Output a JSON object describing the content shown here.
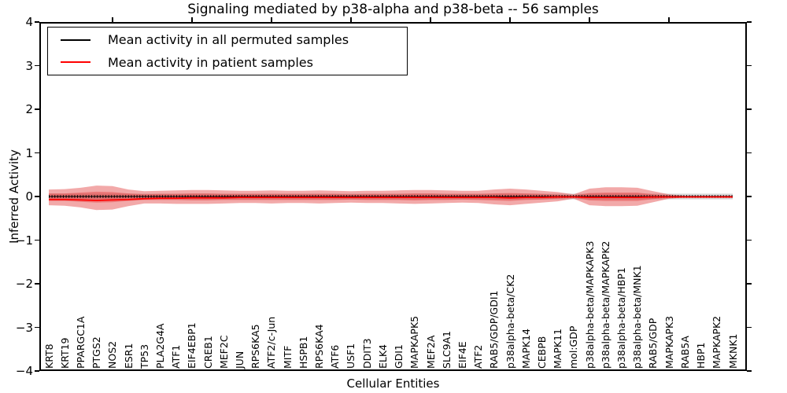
{
  "title": "Signaling mediated by p38-alpha and p38-beta -- 56 samples",
  "axes": {
    "ylabel": "Inferred Activity",
    "xlabel": "Cellular Entities",
    "ylim": [
      -4,
      4
    ],
    "y_tick_labels": [
      "4",
      "3",
      "2",
      "1",
      "0",
      "−1",
      "−2",
      "−3",
      "−4"
    ],
    "y_tick_values": [
      4,
      3,
      2,
      1,
      0,
      -1,
      -2,
      -3,
      -4
    ]
  },
  "legend": {
    "items": [
      {
        "label": "Mean activity in all permuted samples",
        "color": "#000000"
      },
      {
        "label": "Mean activity in patient samples",
        "color": "#ff0000"
      }
    ]
  },
  "chart_data": {
    "type": "line",
    "title": "Signaling mediated by p38-alpha and p38-beta -- 56 samples",
    "xlabel": "Cellular Entities",
    "ylabel": "Inferred Activity",
    "ylim": [
      -4,
      4
    ],
    "grid": false,
    "legend_position": "upper left",
    "categories": [
      "KRT8",
      "KRT19",
      "PPARGC1A",
      "PTGS2",
      "NOS2",
      "ESR1",
      "TP53",
      "PLA2G4A",
      "ATF1",
      "EIF4EBP1",
      "CREB1",
      "MEF2C",
      "JUN",
      "RPS6KA5",
      "ATF2/c-Jun",
      "MITF",
      "HSPB1",
      "RPS6KA4",
      "ATF6",
      "USF1",
      "DDIT3",
      "ELK4",
      "GDI1",
      "MAPKAPK5",
      "MEF2A",
      "SLC9A1",
      "EIF4E",
      "ATF2",
      "RAB5/GDP/GDI1",
      "p38alpha-beta/CK2",
      "MAPK14",
      "CEBPB",
      "MAPK11",
      "mol:GDP",
      "p38alpha-beta/MAPKAPK3",
      "p38alpha-beta/MAPKAPK2",
      "p38alpha-beta/HBP1",
      "p38alpha-beta/MNK1",
      "RAB5/GDP",
      "MAPKAPK3",
      "RAB5A",
      "HBP1",
      "MAPKAPK2",
      "MKNK1"
    ],
    "series": [
      {
        "name": "Mean activity in all permuted samples",
        "color": "#000000",
        "values": [
          0,
          0,
          0,
          0,
          0,
          0,
          0,
          0,
          0,
          0,
          0,
          0,
          0,
          0,
          0,
          0,
          0,
          0,
          0,
          0,
          0,
          0,
          0,
          0,
          0,
          0,
          0,
          0,
          0,
          0,
          0,
          0,
          0,
          0,
          0,
          0,
          0,
          0,
          0,
          0,
          0,
          0,
          0,
          0
        ]
      },
      {
        "name": "Mean activity in patient samples",
        "color": "#ff0000",
        "values": [
          -0.07,
          -0.07,
          -0.08,
          -0.09,
          -0.08,
          -0.07,
          -0.05,
          -0.04,
          -0.04,
          -0.03,
          -0.03,
          -0.03,
          -0.02,
          -0.02,
          -0.02,
          -0.02,
          -0.02,
          -0.02,
          -0.02,
          -0.02,
          -0.02,
          -0.02,
          -0.02,
          -0.02,
          -0.02,
          -0.02,
          -0.02,
          -0.02,
          -0.02,
          -0.03,
          -0.02,
          -0.02,
          -0.01,
          -0.01,
          -0.02,
          -0.02,
          -0.02,
          -0.02,
          -0.01,
          -0.01,
          -0.01,
          -0.01,
          -0.01,
          -0.01
        ]
      }
    ],
    "bands": {
      "permuted_halfwidth": 0.065,
      "patient_outer_upper": [
        0.16,
        0.17,
        0.2,
        0.25,
        0.24,
        0.16,
        0.12,
        0.13,
        0.14,
        0.15,
        0.15,
        0.14,
        0.13,
        0.13,
        0.14,
        0.13,
        0.13,
        0.14,
        0.13,
        0.12,
        0.13,
        0.13,
        0.14,
        0.15,
        0.15,
        0.14,
        0.13,
        0.13,
        0.16,
        0.18,
        0.16,
        0.13,
        0.1,
        0.05,
        0.18,
        0.21,
        0.21,
        0.2,
        0.12,
        0.05,
        0.02,
        0.02,
        0.02,
        0.02
      ],
      "patient_outer_lower": [
        -0.2,
        -0.21,
        -0.25,
        -0.31,
        -0.3,
        -0.22,
        -0.16,
        -0.16,
        -0.17,
        -0.17,
        -0.17,
        -0.16,
        -0.15,
        -0.15,
        -0.16,
        -0.15,
        -0.15,
        -0.16,
        -0.15,
        -0.14,
        -0.15,
        -0.15,
        -0.16,
        -0.17,
        -0.16,
        -0.15,
        -0.14,
        -0.15,
        -0.18,
        -0.2,
        -0.17,
        -0.14,
        -0.11,
        -0.05,
        -0.2,
        -0.22,
        -0.22,
        -0.21,
        -0.13,
        -0.05,
        -0.02,
        -0.02,
        -0.02,
        -0.02
      ],
      "patient_inner_upper": [
        0.07,
        0.07,
        0.09,
        0.11,
        0.1,
        0.07,
        0.05,
        0.06,
        0.06,
        0.07,
        0.07,
        0.06,
        0.06,
        0.06,
        0.06,
        0.06,
        0.06,
        0.06,
        0.06,
        0.05,
        0.06,
        0.06,
        0.06,
        0.07,
        0.07,
        0.06,
        0.06,
        0.06,
        0.07,
        0.08,
        0.07,
        0.06,
        0.04,
        0.02,
        0.08,
        0.09,
        0.09,
        0.09,
        0.05,
        0.02,
        0.01,
        0.01,
        0.01,
        0.01
      ],
      "patient_inner_lower": [
        -0.1,
        -0.1,
        -0.12,
        -0.14,
        -0.13,
        -0.1,
        -0.08,
        -0.08,
        -0.08,
        -0.09,
        -0.09,
        -0.08,
        -0.08,
        -0.08,
        -0.08,
        -0.08,
        -0.08,
        -0.08,
        -0.08,
        -0.07,
        -0.08,
        -0.08,
        -0.08,
        -0.09,
        -0.08,
        -0.08,
        -0.07,
        -0.08,
        -0.09,
        -0.1,
        -0.08,
        -0.07,
        -0.05,
        -0.02,
        -0.09,
        -0.1,
        -0.1,
        -0.1,
        -0.06,
        -0.02,
        -0.01,
        -0.01,
        -0.01,
        -0.01
      ]
    },
    "colors": {
      "outer_band": "rgba(225,50,50,0.42)",
      "inner_band": "rgba(225,45,45,0.38)",
      "permuted_band": "rgba(0,0,0,0.16)",
      "permuted_line": "#000000",
      "patient_line": "#ff0000"
    }
  }
}
